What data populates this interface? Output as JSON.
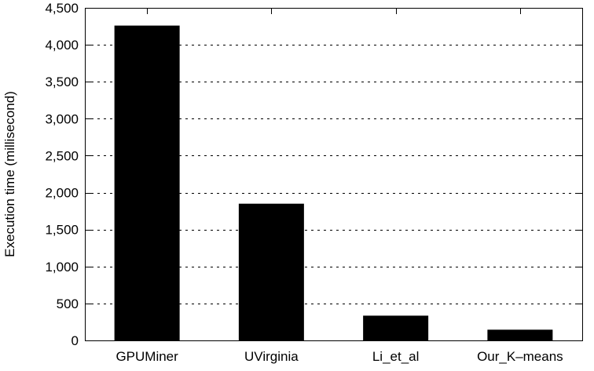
{
  "chart_data": {
    "type": "bar",
    "title": "",
    "xlabel": "",
    "ylabel": "Execution time (millisecond)",
    "categories": [
      "GPUMiner",
      "UVirginia",
      "Li_et_al",
      "Our_K–means"
    ],
    "values": [
      4260,
      1850,
      335,
      145
    ],
    "ylim": [
      0,
      4500
    ],
    "yticks": [
      0,
      500,
      1000,
      1500,
      2000,
      2500,
      3000,
      3500,
      4000,
      4500
    ],
    "ytick_labels": [
      "0",
      "500",
      "1,000",
      "1,500",
      "2,000",
      "2,500",
      "3,000",
      "3,500",
      "4,000",
      "4,500"
    ],
    "grid": "horizontal-dotted",
    "legend": "none",
    "bar_color": "#000000"
  }
}
